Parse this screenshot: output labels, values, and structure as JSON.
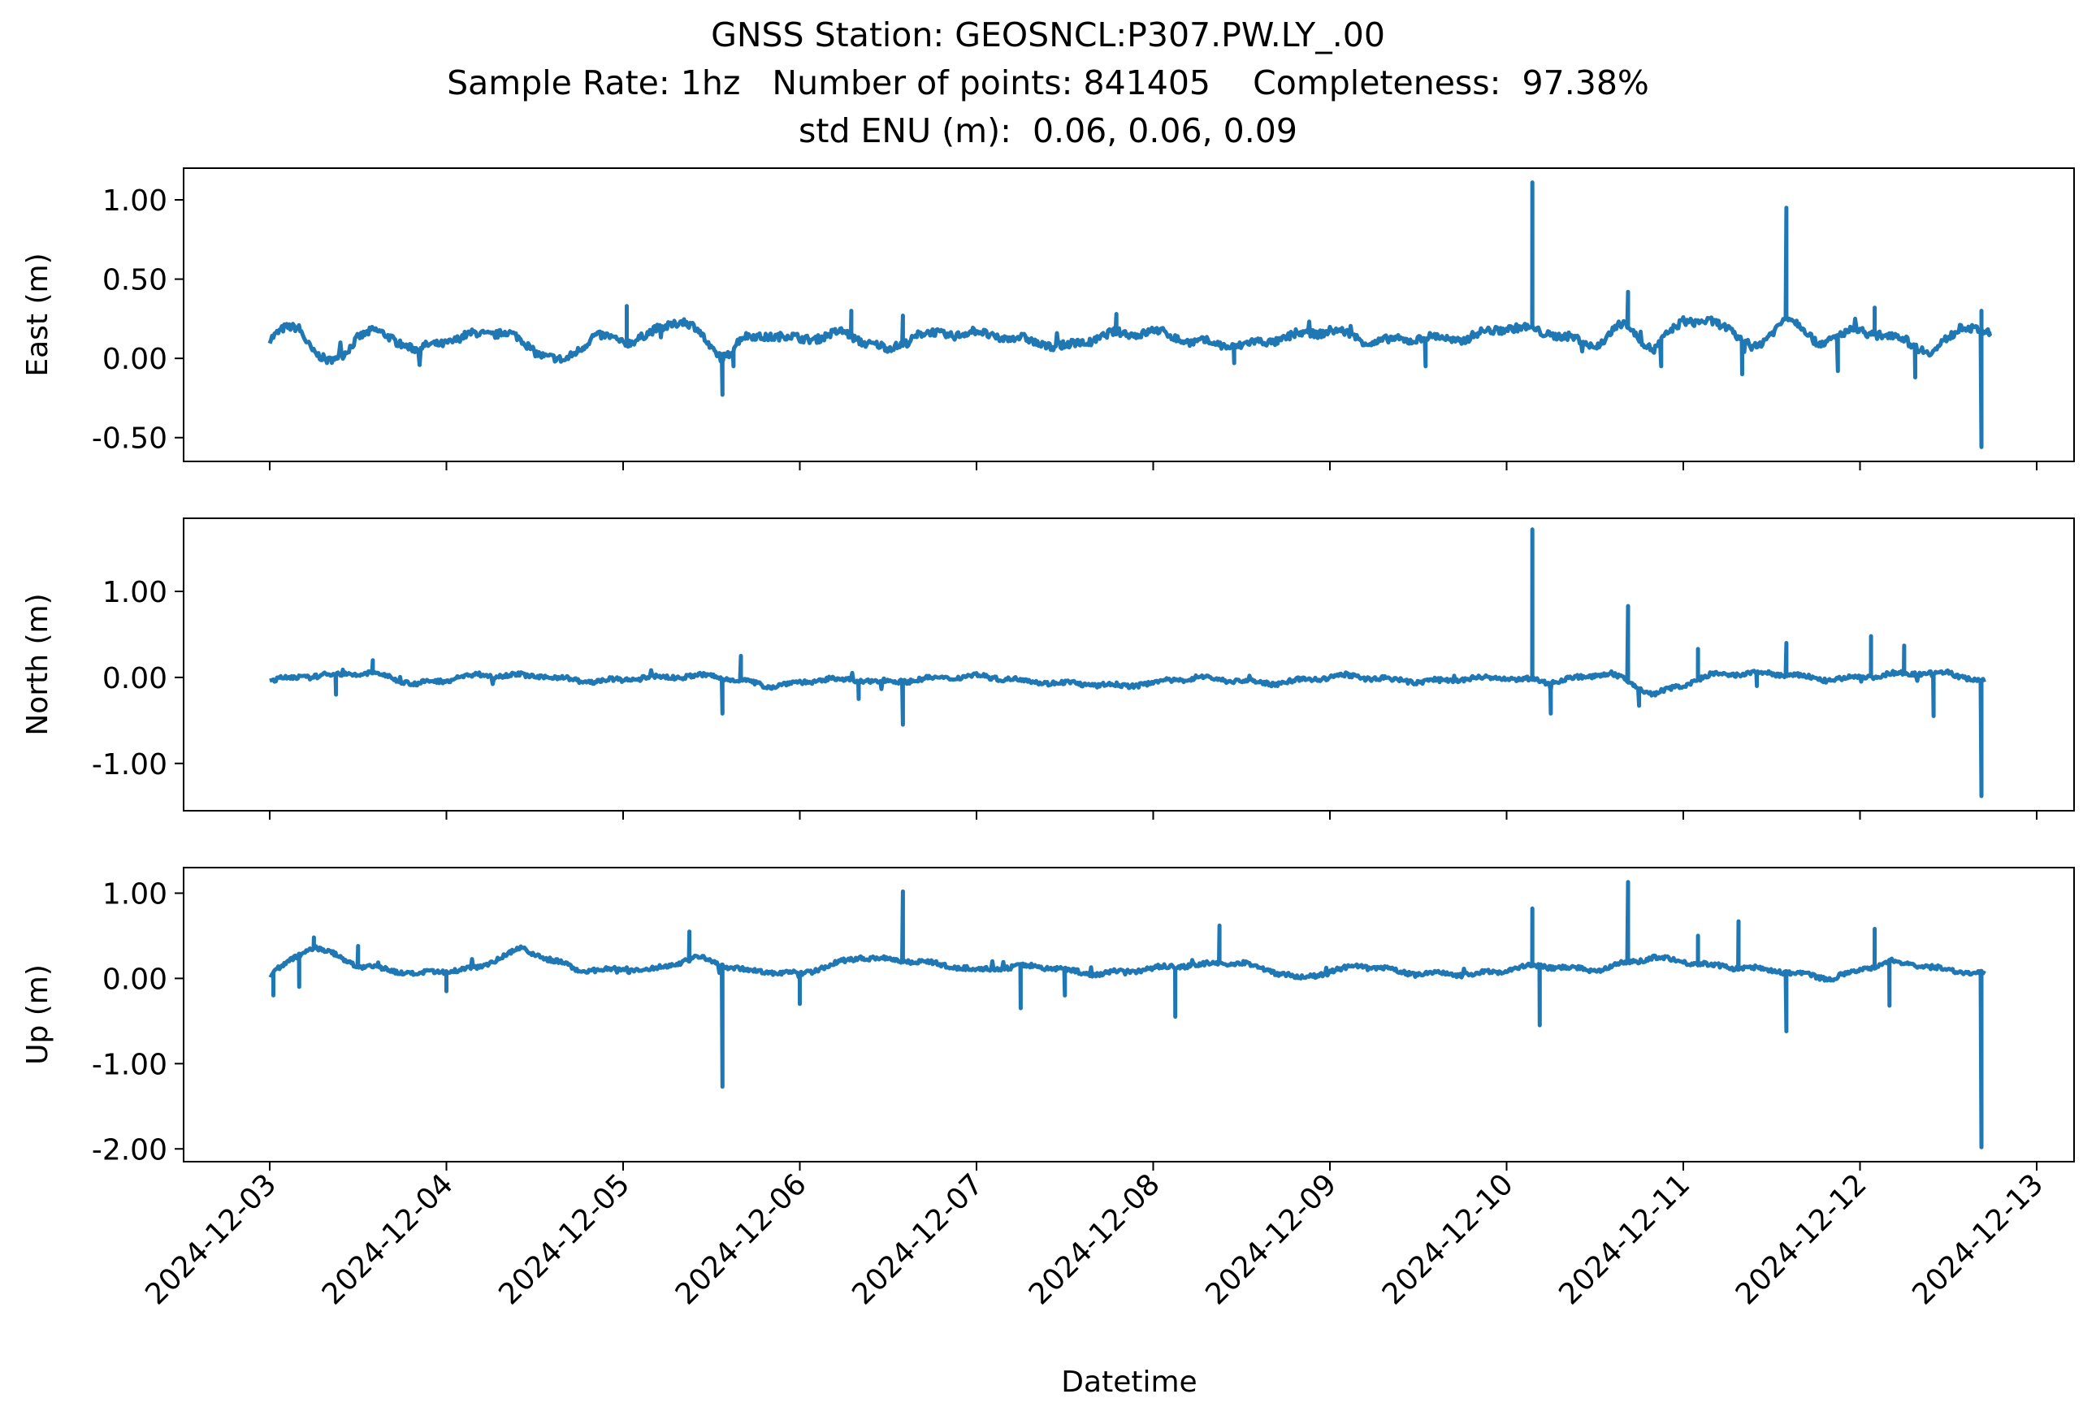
{
  "figure": {
    "title_lines": [
      "GNSS Station: GEOSNCL:P307.PW.LY_.00",
      "Sample Rate: 1hz   Number of points: 841405    Completeness:  97.38%",
      "std ENU (m):  0.06, 0.06, 0.09"
    ],
    "line_color": "#1f77b4"
  },
  "chart_data": [
    {
      "type": "line",
      "ylabel": "East (m)",
      "ylim": [
        -0.65,
        1.2
      ],
      "yticks": [
        1.0,
        0.5,
        0.0,
        -0.5
      ],
      "ytick_labels": [
        "1.00",
        "0.50",
        "0.00",
        "-0.50"
      ],
      "xlim": [
        "2024-12-02T23:00",
        "2024-12-13T00:15"
      ],
      "baseline": [
        [
          "2024-12-03T00:00",
          0.13
        ],
        [
          "2024-12-03T02:00",
          0.18
        ],
        [
          "2024-12-03T04:00",
          0.19
        ],
        [
          "2024-12-03T06:00",
          0.05
        ],
        [
          "2024-12-03T08:00",
          -0.03
        ],
        [
          "2024-12-03T10:00",
          0.02
        ],
        [
          "2024-12-03T12:00",
          0.15
        ],
        [
          "2024-12-03T14:00",
          0.17
        ],
        [
          "2024-12-03T18:00",
          0.1
        ],
        [
          "2024-12-03T20:00",
          0.05
        ],
        [
          "2024-12-04T00:00",
          0.11
        ],
        [
          "2024-12-04T04:00",
          0.15
        ],
        [
          "2024-12-04T08:00",
          0.17
        ],
        [
          "2024-12-04T12:00",
          0.05
        ],
        [
          "2024-12-04T16:00",
          -0.03
        ],
        [
          "2024-12-04T20:00",
          0.15
        ],
        [
          "2024-12-05T00:00",
          0.1
        ],
        [
          "2024-12-05T04:00",
          0.16
        ],
        [
          "2024-12-05T08:00",
          0.25
        ],
        [
          "2024-12-05T10:00",
          0.18
        ],
        [
          "2024-12-05T12:00",
          0.05
        ],
        [
          "2024-12-05T14:00",
          0.02
        ],
        [
          "2024-12-05T16:00",
          0.12
        ],
        [
          "2024-12-05T20:00",
          0.15
        ],
        [
          "2024-12-06T00:00",
          0.12
        ],
        [
          "2024-12-06T06:00",
          0.16
        ],
        [
          "2024-12-06T12:00",
          0.05
        ],
        [
          "2024-12-06T16:00",
          0.15
        ],
        [
          "2024-12-07T00:00",
          0.16
        ],
        [
          "2024-12-07T06:00",
          0.12
        ],
        [
          "2024-12-07T12:00",
          0.07
        ],
        [
          "2024-12-07T18:00",
          0.15
        ],
        [
          "2024-12-08T00:00",
          0.17
        ],
        [
          "2024-12-08T06:00",
          0.1
        ],
        [
          "2024-12-08T12:00",
          0.08
        ],
        [
          "2024-12-08T18:00",
          0.13
        ],
        [
          "2024-12-09T00:00",
          0.18
        ],
        [
          "2024-12-09T06:00",
          0.1
        ],
        [
          "2024-12-09T12:00",
          0.13
        ],
        [
          "2024-12-09T18:00",
          0.12
        ],
        [
          "2024-12-10T00:00",
          0.2
        ],
        [
          "2024-12-10T06:00",
          0.16
        ],
        [
          "2024-12-10T12:00",
          0.08
        ],
        [
          "2024-12-10T16:00",
          0.22
        ],
        [
          "2024-12-10T20:00",
          0.05
        ],
        [
          "2024-12-11T00:00",
          0.25
        ],
        [
          "2024-12-11T06:00",
          0.2
        ],
        [
          "2024-12-11T10:00",
          0.05
        ],
        [
          "2024-12-11T14:00",
          0.28
        ],
        [
          "2024-12-11T18:00",
          0.1
        ],
        [
          "2024-12-12T00:00",
          0.18
        ],
        [
          "2024-12-12T06:00",
          0.12
        ],
        [
          "2024-12-12T10:00",
          0.03
        ],
        [
          "2024-12-12T14:00",
          0.22
        ],
        [
          "2024-12-12T18:00",
          0.13
        ]
      ],
      "spikes": [
        [
          "2024-12-05T13:30",
          -0.23
        ],
        [
          "2024-12-05T15:00",
          -0.05
        ],
        [
          "2024-12-05T00:30",
          0.33
        ],
        [
          "2024-12-06T07:00",
          0.3
        ],
        [
          "2024-12-06T14:00",
          0.27
        ],
        [
          "2024-12-07T19:00",
          0.28
        ],
        [
          "2024-12-08T11:00",
          -0.03
        ],
        [
          "2024-12-09T13:00",
          -0.05
        ],
        [
          "2024-12-10T03:30",
          1.11
        ],
        [
          "2024-12-10T16:30",
          0.42
        ],
        [
          "2024-12-10T21:00",
          -0.05
        ],
        [
          "2024-12-11T08:00",
          -0.1
        ],
        [
          "2024-12-11T14:00",
          0.95
        ],
        [
          "2024-12-11T21:00",
          -0.08
        ],
        [
          "2024-12-12T02:00",
          0.32
        ],
        [
          "2024-12-12T07:30",
          -0.12
        ],
        [
          "2024-12-12T16:30",
          -0.56
        ],
        [
          "2024-12-12T16:30",
          0.3
        ]
      ]
    },
    {
      "type": "line",
      "ylabel": "North (m)",
      "ylim": [
        -1.55,
        1.85
      ],
      "yticks": [
        1.0,
        0.0,
        -1.0
      ],
      "ytick_labels": [
        "1.00",
        "0.00",
        "-1.00"
      ],
      "xlim": [
        "2024-12-02T23:00",
        "2024-12-13T00:15"
      ],
      "baseline": [
        [
          "2024-12-03T00:00",
          -0.03
        ],
        [
          "2024-12-03T06:00",
          0.02
        ],
        [
          "2024-12-03T14:00",
          0.05
        ],
        [
          "2024-12-03T20:00",
          -0.08
        ],
        [
          "2024-12-04T04:00",
          0.03
        ],
        [
          "2024-12-04T12:00",
          0.02
        ],
        [
          "2024-12-04T20:00",
          -0.05
        ],
        [
          "2024-12-05T04:00",
          0.0
        ],
        [
          "2024-12-05T12:00",
          0.02
        ],
        [
          "2024-12-05T20:00",
          -0.1
        ],
        [
          "2024-12-06T04:00",
          -0.02
        ],
        [
          "2024-12-06T12:00",
          -0.05
        ],
        [
          "2024-12-07T00:00",
          0.02
        ],
        [
          "2024-12-07T08:00",
          -0.05
        ],
        [
          "2024-12-07T20:00",
          -0.1
        ],
        [
          "2024-12-08T06:00",
          0.0
        ],
        [
          "2024-12-08T16:00",
          -0.07
        ],
        [
          "2024-12-09T02:00",
          0.02
        ],
        [
          "2024-12-09T12:00",
          -0.05
        ],
        [
          "2024-12-09T22:00",
          0.0
        ],
        [
          "2024-12-10T06:00",
          -0.05
        ],
        [
          "2024-12-10T14:00",
          0.05
        ],
        [
          "2024-12-10T20:00",
          -0.2
        ],
        [
          "2024-12-11T04:00",
          0.03
        ],
        [
          "2024-12-11T12:00",
          0.05
        ],
        [
          "2024-12-11T20:00",
          -0.03
        ],
        [
          "2024-12-12T06:00",
          0.05
        ],
        [
          "2024-12-12T12:00",
          0.05
        ],
        [
          "2024-12-12T17:00",
          -0.05
        ]
      ],
      "spikes": [
        [
          "2024-12-03T09:00",
          -0.2
        ],
        [
          "2024-12-03T14:00",
          0.2
        ],
        [
          "2024-12-05T13:30",
          -0.42
        ],
        [
          "2024-12-05T16:00",
          0.25
        ],
        [
          "2024-12-06T08:00",
          -0.25
        ],
        [
          "2024-12-06T14:00",
          -0.55
        ],
        [
          "2024-12-10T03:30",
          1.72
        ],
        [
          "2024-12-10T06:00",
          -0.42
        ],
        [
          "2024-12-10T16:30",
          0.83
        ],
        [
          "2024-12-10T18:00",
          -0.33
        ],
        [
          "2024-12-11T02:00",
          0.33
        ],
        [
          "2024-12-11T10:00",
          -0.1
        ],
        [
          "2024-12-11T14:00",
          0.4
        ],
        [
          "2024-12-12T01:30",
          0.48
        ],
        [
          "2024-12-12T06:00",
          0.37
        ],
        [
          "2024-12-12T10:00",
          -0.45
        ],
        [
          "2024-12-12T16:30",
          -1.38
        ]
      ]
    },
    {
      "type": "line",
      "ylabel": "Up (m)",
      "ylim": [
        -2.15,
        1.3
      ],
      "yticks": [
        1.0,
        0.0,
        -1.0,
        -2.0
      ],
      "ytick_labels": [
        "1.00",
        "0.00",
        "-1.00",
        "-2.00"
      ],
      "xlim": [
        "2024-12-02T23:00",
        "2024-12-13T00:15"
      ],
      "baseline": [
        [
          "2024-12-03T00:00",
          0.05
        ],
        [
          "2024-12-03T06:00",
          0.38
        ],
        [
          "2024-12-03T12:00",
          0.15
        ],
        [
          "2024-12-03T20:00",
          0.05
        ],
        [
          "2024-12-04T04:00",
          0.12
        ],
        [
          "2024-12-04T10:00",
          0.35
        ],
        [
          "2024-12-04T18:00",
          0.1
        ],
        [
          "2024-12-05T04:00",
          0.1
        ],
        [
          "2024-12-05T10:00",
          0.25
        ],
        [
          "2024-12-05T16:00",
          0.1
        ],
        [
          "2024-12-06T00:00",
          0.05
        ],
        [
          "2024-12-06T08:00",
          0.25
        ],
        [
          "2024-12-06T16:00",
          0.2
        ],
        [
          "2024-12-07T00:00",
          0.1
        ],
        [
          "2024-12-07T08:00",
          0.15
        ],
        [
          "2024-12-07T16:00",
          0.05
        ],
        [
          "2024-12-08T04:00",
          0.15
        ],
        [
          "2024-12-08T12:00",
          0.18
        ],
        [
          "2024-12-08T20:00",
          0.0
        ],
        [
          "2024-12-09T04:00",
          0.15
        ],
        [
          "2024-12-09T12:00",
          0.05
        ],
        [
          "2024-12-09T20:00",
          0.05
        ],
        [
          "2024-12-10T04:00",
          0.15
        ],
        [
          "2024-12-10T12:00",
          0.1
        ],
        [
          "2024-12-10T20:00",
          0.25
        ],
        [
          "2024-12-11T04:00",
          0.15
        ],
        [
          "2024-12-11T12:00",
          0.1
        ],
        [
          "2024-12-11T20:00",
          0.0
        ],
        [
          "2024-12-12T04:00",
          0.2
        ],
        [
          "2024-12-12T12:00",
          0.1
        ],
        [
          "2024-12-12T17:00",
          0.05
        ]
      ],
      "spikes": [
        [
          "2024-12-03T00:30",
          -0.2
        ],
        [
          "2024-12-03T04:00",
          -0.1
        ],
        [
          "2024-12-03T06:00",
          0.48
        ],
        [
          "2024-12-03T12:00",
          0.38
        ],
        [
          "2024-12-04T00:00",
          -0.15
        ],
        [
          "2024-12-05T09:00",
          0.55
        ],
        [
          "2024-12-05T13:30",
          -1.27
        ],
        [
          "2024-12-06T00:00",
          -0.3
        ],
        [
          "2024-12-06T14:00",
          1.02
        ],
        [
          "2024-12-07T06:00",
          -0.35
        ],
        [
          "2024-12-07T12:00",
          -0.2
        ],
        [
          "2024-12-08T03:00",
          -0.45
        ],
        [
          "2024-12-08T09:00",
          0.62
        ],
        [
          "2024-12-10T03:30",
          0.82
        ],
        [
          "2024-12-10T04:30",
          -0.55
        ],
        [
          "2024-12-10T16:30",
          1.13
        ],
        [
          "2024-12-11T02:00",
          0.5
        ],
        [
          "2024-12-11T07:30",
          0.67
        ],
        [
          "2024-12-11T14:00",
          -0.62
        ],
        [
          "2024-12-12T02:00",
          0.58
        ],
        [
          "2024-12-12T04:00",
          -0.32
        ],
        [
          "2024-12-12T16:30",
          -1.98
        ]
      ]
    }
  ],
  "x_axis": {
    "label": "Datetime",
    "ticks": [
      "2024-12-03",
      "2024-12-04",
      "2024-12-05",
      "2024-12-06",
      "2024-12-07",
      "2024-12-08",
      "2024-12-09",
      "2024-12-10",
      "2024-12-11",
      "2024-12-12",
      "2024-12-13"
    ]
  }
}
